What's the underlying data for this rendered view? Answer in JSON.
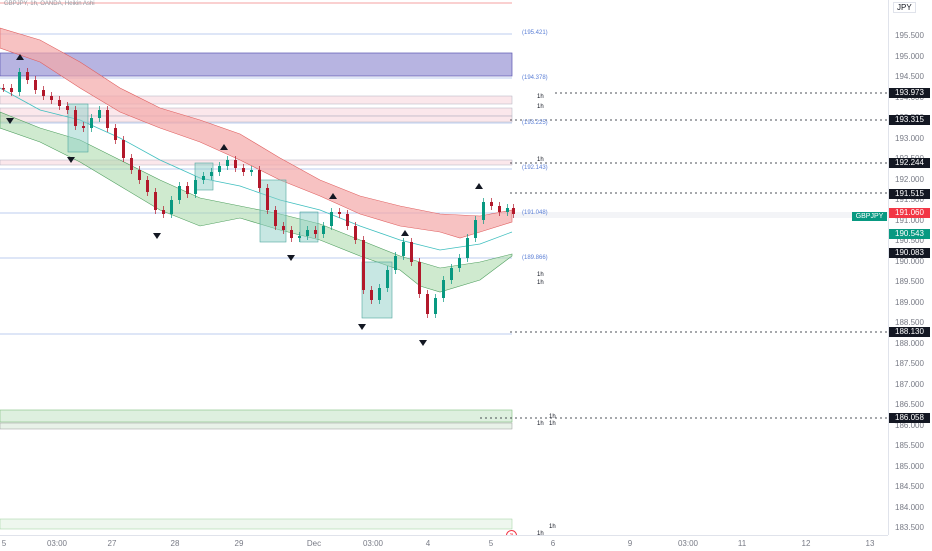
{
  "header": {
    "title": "GBPJPY, 1h, OANDA, Heikin Ashi",
    "currency": "JPY"
  },
  "colors": {
    "up": "#089981",
    "down": "#b2182b",
    "cloud_red": "#f4a8a8",
    "cloud_green": "#a8d8a8",
    "zone_blue": "#7b76c8",
    "level_blue": "#5b7fd6",
    "zone_green": "#c8e6c9"
  },
  "price_axis": {
    "ticks": [
      "195.500",
      "195.000",
      "194.500",
      "194.000",
      "193.500",
      "193.000",
      "192.500",
      "192.000",
      "191.500",
      "191.000",
      "190.500",
      "190.000",
      "189.500",
      "189.000",
      "188.500",
      "188.000",
      "187.500",
      "187.000",
      "186.500",
      "186.000",
      "185.500",
      "185.000",
      "184.500",
      "184.000",
      "183.500"
    ]
  },
  "price_tags": [
    {
      "label": "193.973",
      "color": "dark"
    },
    {
      "label": "193.315",
      "color": "dark"
    },
    {
      "label": "192.244",
      "color": "dark"
    },
    {
      "label": "191.515",
      "color": "dark"
    },
    {
      "label": "191.060",
      "color": "red"
    },
    {
      "label": "190.543",
      "color": "green"
    },
    {
      "label": "190.083",
      "color": "dark"
    },
    {
      "label": "188.130",
      "color": "dark"
    },
    {
      "label": "186.058",
      "color": "dark"
    }
  ],
  "symbol_tag": "GBPJPY",
  "time_axis": {
    "labels": [
      "5",
      "03:00",
      "27",
      "28",
      "29",
      "Dec",
      "03:00",
      "4",
      "5",
      "6",
      "9",
      "03:00",
      "11",
      "12",
      "13"
    ]
  },
  "levels": [
    "(195.421)",
    "(194.378)",
    "(193.225)",
    "(192.143)",
    "(191.048)",
    "(189.866)"
  ],
  "tf_labels": [
    "1h",
    "1h",
    "1h",
    "1h",
    "1h",
    "1h",
    "1h",
    "1h",
    "1h",
    "1h"
  ],
  "goto_icon": "arrow-icon"
}
